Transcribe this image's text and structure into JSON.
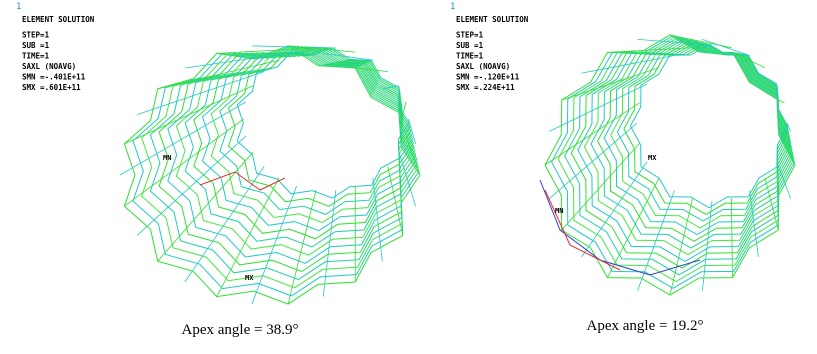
{
  "panels": [
    {
      "corner_label": "1",
      "lines": [
        "ELEMENT SOLUTION",
        "STEP=1",
        "SUB =1",
        "TIME=1",
        "SAXL      (NOAVG)",
        "SMN =-.401E+11",
        "SMX =.601E+11"
      ],
      "min_label": "MN",
      "max_label": "MX",
      "caption": "Apex angle = 38.9°"
    },
    {
      "corner_label": "1",
      "lines": [
        "ELEMENT SOLUTION",
        "STEP=1",
        "SUB =1",
        "TIME=1",
        "SAXL      (NOAVG)",
        "SMN =-.120E+11",
        "SMX =.224E+11"
      ],
      "min_label": "MN",
      "max_label": "MX",
      "caption": "Apex angle = 19.2°"
    }
  ]
}
